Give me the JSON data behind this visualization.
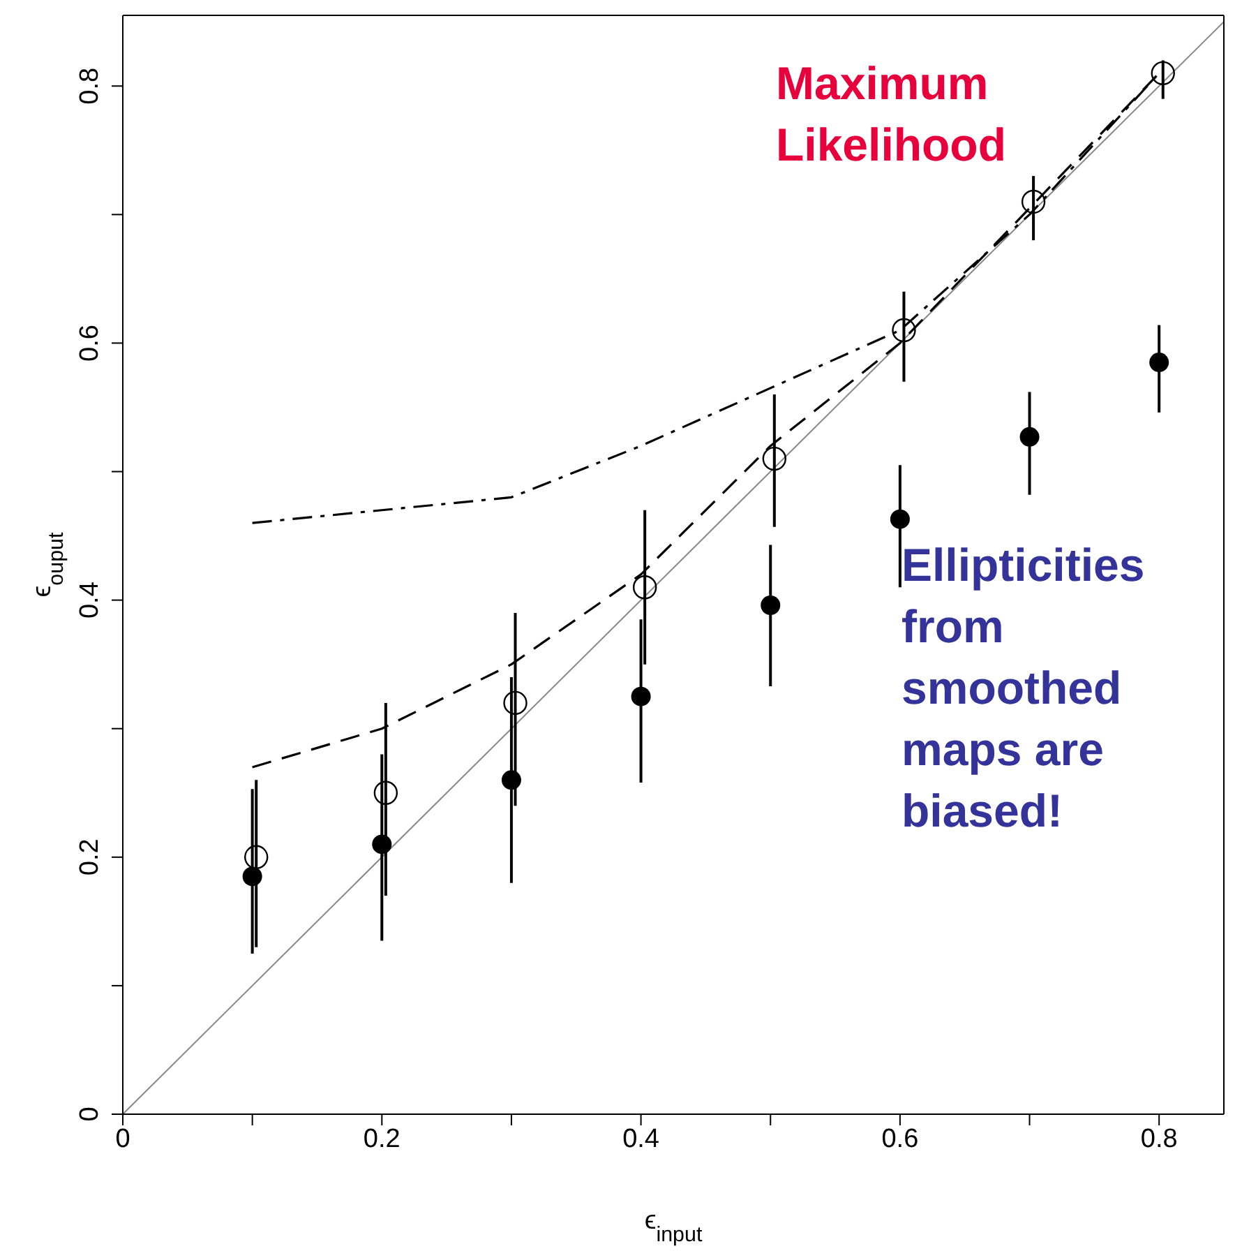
{
  "chart_data": {
    "type": "scatter",
    "xlabel": "ϵ$_{input}$",
    "ylabel": "ϵ$_{ouput}$",
    "xlim": [
      0,
      0.85
    ],
    "ylim": [
      0,
      0.855
    ],
    "xticks": [
      0,
      {
        "value": 0.1,
        "label": null
      },
      0.2,
      {
        "value": 0.3,
        "label": null
      },
      0.4,
      {
        "value": 0.5,
        "label": null
      },
      0.6,
      {
        "value": 0.7,
        "label": null
      },
      0.8
    ],
    "yticks": [
      0,
      {
        "value": 0.1,
        "label": null
      },
      0.2,
      {
        "value": 0.3,
        "label": null
      },
      0.4,
      {
        "value": 0.5,
        "label": null
      },
      0.6,
      {
        "value": 0.7,
        "label": null
      },
      0.8
    ],
    "annotations": [
      "Maximum Likelihood",
      "Ellipticities from smoothed maps are biased!"
    ],
    "series": [
      {
        "type": "line",
        "color": "#888888",
        "line_style": "solid",
        "marker": "none",
        "x": [
          0,
          0.85
        ],
        "values": [
          0,
          0.85
        ]
      },
      {
        "type": "line",
        "color": "#000000",
        "line_style": "dashed",
        "marker": "none",
        "x": [
          0.1,
          0.2,
          0.3,
          0.4,
          0.5,
          0.6,
          0.7,
          0.8
        ],
        "values": [
          0.27,
          0.3,
          0.35,
          0.42,
          0.52,
          0.6,
          0.705,
          0.81
        ]
      },
      {
        "type": "line",
        "color": "#000000",
        "line_style": "dashdot",
        "marker": "none",
        "x": [
          0.1,
          0.2,
          0.3,
          0.4,
          0.5,
          0.6,
          0.7,
          0.8
        ],
        "values": [
          0.46,
          0.47,
          0.48,
          0.52,
          0.565,
          0.61,
          0.7,
          0.81
        ]
      },
      {
        "type": "scatter",
        "color": "#000000",
        "marker": "circle",
        "x": [
          0.1,
          0.2,
          0.3,
          0.4,
          0.5,
          0.6,
          0.7,
          0.8
        ],
        "values": [
          0.185,
          0.21,
          0.26,
          0.325,
          0.396,
          0.463,
          0.527,
          0.585
        ],
        "errors": [
          [
            0.125,
            0.253
          ],
          [
            0.135,
            0.28
          ],
          [
            0.18,
            0.34
          ],
          [
            0.258,
            0.385
          ],
          [
            0.333,
            0.443
          ],
          [
            0.41,
            0.505
          ],
          [
            0.482,
            0.562
          ],
          [
            0.546,
            0.614
          ]
        ]
      },
      {
        "type": "scatter",
        "color": "#000000",
        "marker": "open circle",
        "x": [
          0.103,
          0.203,
          0.303,
          0.403,
          0.503,
          0.603,
          0.703,
          0.803
        ],
        "values": [
          0.2,
          0.25,
          0.32,
          0.41,
          0.51,
          0.61,
          0.71,
          0.81
        ],
        "errors": [
          [
            0.13,
            0.26
          ],
          [
            0.17,
            0.32
          ],
          [
            0.24,
            0.39
          ],
          [
            0.35,
            0.47
          ],
          [
            0.457,
            0.56
          ],
          [
            0.57,
            0.64
          ],
          [
            0.68,
            0.73
          ],
          [
            0.79,
            0.82
          ]
        ]
      }
    ]
  }
}
